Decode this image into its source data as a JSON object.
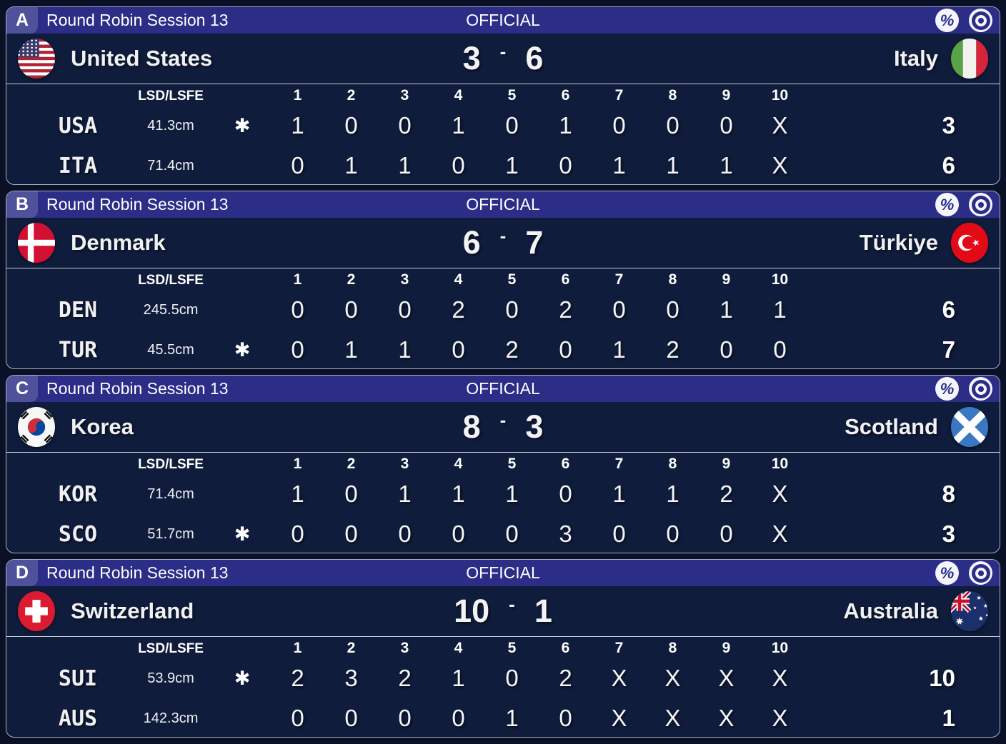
{
  "labels": {
    "lsd_header": "LSD/LSFE",
    "hammer_symbol": "✱",
    "percent_glyph": "%"
  },
  "ends_header": [
    "1",
    "2",
    "3",
    "4",
    "5",
    "6",
    "7",
    "8",
    "9",
    "10"
  ],
  "colors": {
    "panel_bg": "#0f1c3c",
    "bar_bg": "#2b2d87",
    "badge_bg": "#4f519b",
    "page_bg": "#0a1126"
  },
  "sheets": [
    {
      "sheet": "A",
      "session_title": "Round Robin Session 13",
      "status": "OFFICIAL",
      "score_separator": "-",
      "home": {
        "name": "United States",
        "flag": "us",
        "score": "3"
      },
      "away": {
        "name": "Italy",
        "flag": "it",
        "score": "6"
      },
      "rows": [
        {
          "code": "USA",
          "lsd": "41.3cm",
          "hammer": true,
          "ends": [
            "1",
            "0",
            "0",
            "1",
            "0",
            "1",
            "0",
            "0",
            "0",
            "X"
          ],
          "total": "3"
        },
        {
          "code": "ITA",
          "lsd": "71.4cm",
          "hammer": false,
          "ends": [
            "0",
            "1",
            "1",
            "0",
            "1",
            "0",
            "1",
            "1",
            "1",
            "X"
          ],
          "total": "6"
        }
      ]
    },
    {
      "sheet": "B",
      "session_title": "Round Robin Session 13",
      "status": "OFFICIAL",
      "score_separator": "-",
      "home": {
        "name": "Denmark",
        "flag": "dk",
        "score": "6"
      },
      "away": {
        "name": "Türkiye",
        "flag": "tr",
        "score": "7"
      },
      "rows": [
        {
          "code": "DEN",
          "lsd": "245.5cm",
          "hammer": false,
          "ends": [
            "0",
            "0",
            "0",
            "2",
            "0",
            "2",
            "0",
            "0",
            "1",
            "1"
          ],
          "total": "6"
        },
        {
          "code": "TUR",
          "lsd": "45.5cm",
          "hammer": true,
          "ends": [
            "0",
            "1",
            "1",
            "0",
            "2",
            "0",
            "1",
            "2",
            "0",
            "0"
          ],
          "total": "7"
        }
      ]
    },
    {
      "sheet": "C",
      "session_title": "Round Robin Session 13",
      "status": "OFFICIAL",
      "score_separator": "-",
      "home": {
        "name": "Korea",
        "flag": "kr",
        "score": "8"
      },
      "away": {
        "name": "Scotland",
        "flag": "sct",
        "score": "3"
      },
      "rows": [
        {
          "code": "KOR",
          "lsd": "71.4cm",
          "hammer": false,
          "ends": [
            "1",
            "0",
            "1",
            "1",
            "1",
            "0",
            "1",
            "1",
            "2",
            "X"
          ],
          "total": "8"
        },
        {
          "code": "SCO",
          "lsd": "51.7cm",
          "hammer": true,
          "ends": [
            "0",
            "0",
            "0",
            "0",
            "0",
            "3",
            "0",
            "0",
            "0",
            "X"
          ],
          "total": "3"
        }
      ]
    },
    {
      "sheet": "D",
      "session_title": "Round Robin Session 13",
      "status": "OFFICIAL",
      "score_separator": "-",
      "home": {
        "name": "Switzerland",
        "flag": "ch",
        "score": "10"
      },
      "away": {
        "name": "Australia",
        "flag": "au",
        "score": "1"
      },
      "rows": [
        {
          "code": "SUI",
          "lsd": "53.9cm",
          "hammer": true,
          "ends": [
            "2",
            "3",
            "2",
            "1",
            "0",
            "2",
            "X",
            "X",
            "X",
            "X"
          ],
          "total": "10"
        },
        {
          "code": "AUS",
          "lsd": "142.3cm",
          "hammer": false,
          "ends": [
            "0",
            "0",
            "0",
            "0",
            "1",
            "0",
            "X",
            "X",
            "X",
            "X"
          ],
          "total": "1"
        }
      ]
    }
  ]
}
